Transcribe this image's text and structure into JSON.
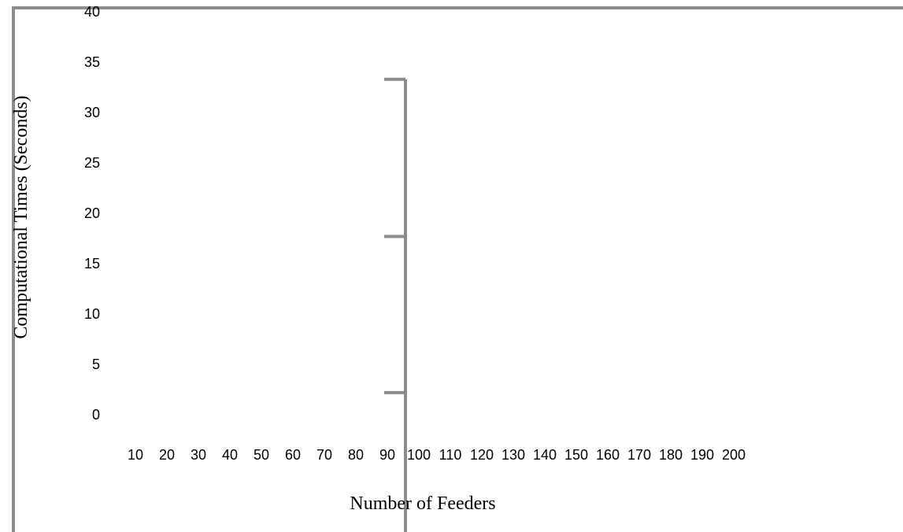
{
  "chart_data": {
    "type": "line",
    "title": "",
    "xlabel": "Number of Feeders",
    "ylabel": "Computational Times (Seconds)",
    "x_categories": [
      "10",
      "20",
      "30",
      "40",
      "50",
      "60",
      "70",
      "80",
      "90",
      "100",
      "110",
      "120",
      "130",
      "140",
      "150",
      "160",
      "170",
      "180",
      "190",
      "200"
    ],
    "ylim": [
      0,
      40
    ],
    "y_ticks": [
      "0",
      "5",
      "10",
      "15",
      "20",
      "25",
      "30",
      "35",
      "40"
    ],
    "grid": false,
    "legend": "none",
    "series": [
      {
        "x": "90",
        "values": [
          2.2,
          17.7,
          33.3
        ]
      }
    ],
    "colors": {
      "line": "#8c8c8c",
      "text": "#000000",
      "background": "#ffffff"
    }
  }
}
